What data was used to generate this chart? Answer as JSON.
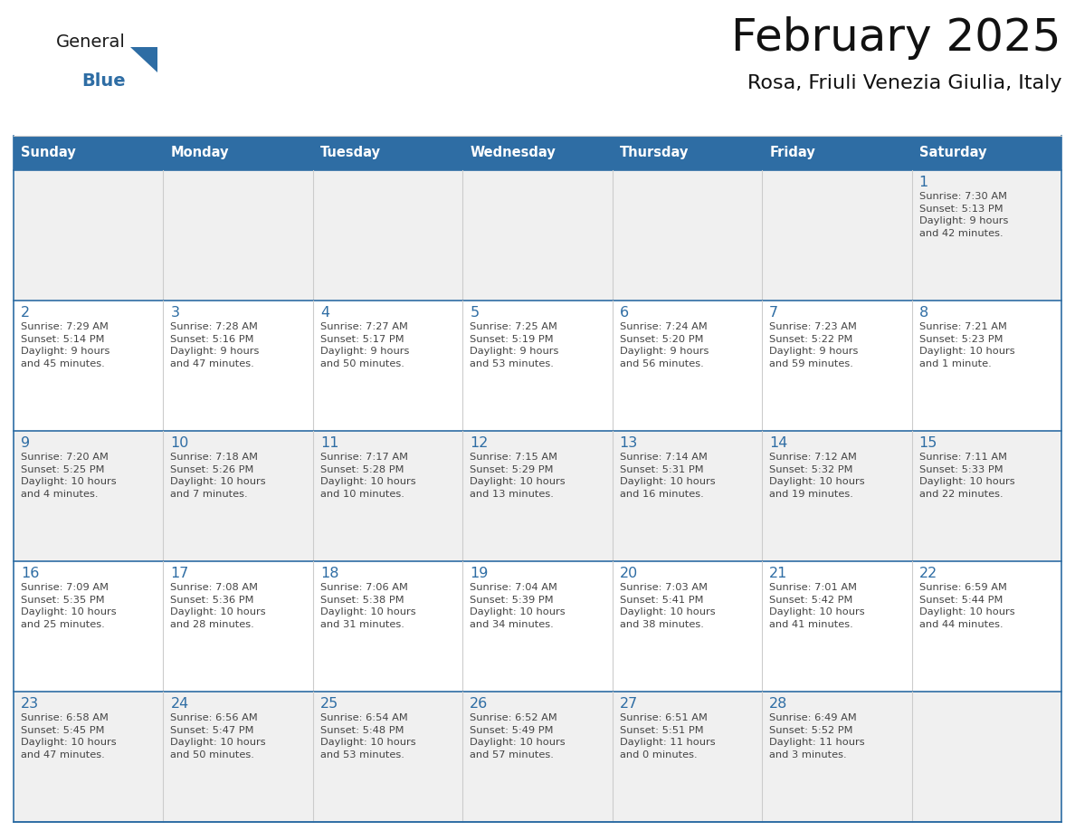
{
  "title": "February 2025",
  "subtitle": "Rosa, Friuli Venezia Giulia, Italy",
  "header_bg_color": "#2e6da4",
  "header_text_color": "#ffffff",
  "cell_bg_color_light": "#f0f0f0",
  "cell_bg_color_white": "#ffffff",
  "text_color": "#444444",
  "day_number_color": "#2e6da4",
  "border_color": "#2e6da4",
  "logo_general_color": "#1a1a1a",
  "logo_blue_color": "#2e6da4",
  "days_of_week": [
    "Sunday",
    "Monday",
    "Tuesday",
    "Wednesday",
    "Thursday",
    "Friday",
    "Saturday"
  ],
  "weeks": [
    [
      {
        "day": null,
        "info": null
      },
      {
        "day": null,
        "info": null
      },
      {
        "day": null,
        "info": null
      },
      {
        "day": null,
        "info": null
      },
      {
        "day": null,
        "info": null
      },
      {
        "day": null,
        "info": null
      },
      {
        "day": "1",
        "info": "Sunrise: 7:30 AM\nSunset: 5:13 PM\nDaylight: 9 hours\nand 42 minutes."
      }
    ],
    [
      {
        "day": "2",
        "info": "Sunrise: 7:29 AM\nSunset: 5:14 PM\nDaylight: 9 hours\nand 45 minutes."
      },
      {
        "day": "3",
        "info": "Sunrise: 7:28 AM\nSunset: 5:16 PM\nDaylight: 9 hours\nand 47 minutes."
      },
      {
        "day": "4",
        "info": "Sunrise: 7:27 AM\nSunset: 5:17 PM\nDaylight: 9 hours\nand 50 minutes."
      },
      {
        "day": "5",
        "info": "Sunrise: 7:25 AM\nSunset: 5:19 PM\nDaylight: 9 hours\nand 53 minutes."
      },
      {
        "day": "6",
        "info": "Sunrise: 7:24 AM\nSunset: 5:20 PM\nDaylight: 9 hours\nand 56 minutes."
      },
      {
        "day": "7",
        "info": "Sunrise: 7:23 AM\nSunset: 5:22 PM\nDaylight: 9 hours\nand 59 minutes."
      },
      {
        "day": "8",
        "info": "Sunrise: 7:21 AM\nSunset: 5:23 PM\nDaylight: 10 hours\nand 1 minute."
      }
    ],
    [
      {
        "day": "9",
        "info": "Sunrise: 7:20 AM\nSunset: 5:25 PM\nDaylight: 10 hours\nand 4 minutes."
      },
      {
        "day": "10",
        "info": "Sunrise: 7:18 AM\nSunset: 5:26 PM\nDaylight: 10 hours\nand 7 minutes."
      },
      {
        "day": "11",
        "info": "Sunrise: 7:17 AM\nSunset: 5:28 PM\nDaylight: 10 hours\nand 10 minutes."
      },
      {
        "day": "12",
        "info": "Sunrise: 7:15 AM\nSunset: 5:29 PM\nDaylight: 10 hours\nand 13 minutes."
      },
      {
        "day": "13",
        "info": "Sunrise: 7:14 AM\nSunset: 5:31 PM\nDaylight: 10 hours\nand 16 minutes."
      },
      {
        "day": "14",
        "info": "Sunrise: 7:12 AM\nSunset: 5:32 PM\nDaylight: 10 hours\nand 19 minutes."
      },
      {
        "day": "15",
        "info": "Sunrise: 7:11 AM\nSunset: 5:33 PM\nDaylight: 10 hours\nand 22 minutes."
      }
    ],
    [
      {
        "day": "16",
        "info": "Sunrise: 7:09 AM\nSunset: 5:35 PM\nDaylight: 10 hours\nand 25 minutes."
      },
      {
        "day": "17",
        "info": "Sunrise: 7:08 AM\nSunset: 5:36 PM\nDaylight: 10 hours\nand 28 minutes."
      },
      {
        "day": "18",
        "info": "Sunrise: 7:06 AM\nSunset: 5:38 PM\nDaylight: 10 hours\nand 31 minutes."
      },
      {
        "day": "19",
        "info": "Sunrise: 7:04 AM\nSunset: 5:39 PM\nDaylight: 10 hours\nand 34 minutes."
      },
      {
        "day": "20",
        "info": "Sunrise: 7:03 AM\nSunset: 5:41 PM\nDaylight: 10 hours\nand 38 minutes."
      },
      {
        "day": "21",
        "info": "Sunrise: 7:01 AM\nSunset: 5:42 PM\nDaylight: 10 hours\nand 41 minutes."
      },
      {
        "day": "22",
        "info": "Sunrise: 6:59 AM\nSunset: 5:44 PM\nDaylight: 10 hours\nand 44 minutes."
      }
    ],
    [
      {
        "day": "23",
        "info": "Sunrise: 6:58 AM\nSunset: 5:45 PM\nDaylight: 10 hours\nand 47 minutes."
      },
      {
        "day": "24",
        "info": "Sunrise: 6:56 AM\nSunset: 5:47 PM\nDaylight: 10 hours\nand 50 minutes."
      },
      {
        "day": "25",
        "info": "Sunrise: 6:54 AM\nSunset: 5:48 PM\nDaylight: 10 hours\nand 53 minutes."
      },
      {
        "day": "26",
        "info": "Sunrise: 6:52 AM\nSunset: 5:49 PM\nDaylight: 10 hours\nand 57 minutes."
      },
      {
        "day": "27",
        "info": "Sunrise: 6:51 AM\nSunset: 5:51 PM\nDaylight: 11 hours\nand 0 minutes."
      },
      {
        "day": "28",
        "info": "Sunrise: 6:49 AM\nSunset: 5:52 PM\nDaylight: 11 hours\nand 3 minutes."
      },
      {
        "day": null,
        "info": null
      }
    ]
  ]
}
